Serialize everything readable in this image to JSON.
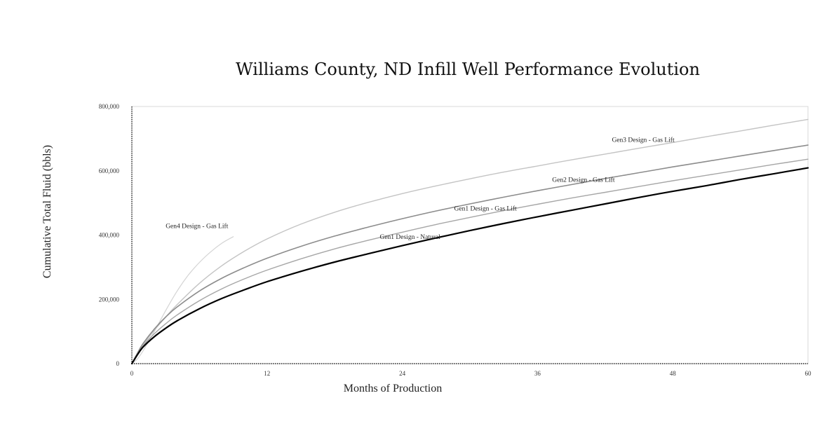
{
  "chart_data": {
    "type": "line",
    "title": "Williams County, ND Infill Well Performance Evolution",
    "xlabel": "Months of Production",
    "ylabel": "Cumulative Total Fluid (bbls)",
    "xlim": [
      0,
      60
    ],
    "ylim": [
      0,
      800000
    ],
    "x_ticks": [
      0,
      12,
      24,
      36,
      48,
      60
    ],
    "y_ticks": [
      0,
      200000,
      400000,
      600000,
      800000
    ],
    "x_tick_labels": [
      "0",
      "12",
      "24",
      "36",
      "48",
      "60"
    ],
    "y_tick_labels": [
      "0",
      "200,000",
      "400,000",
      "600,000",
      "800,000"
    ],
    "grid": false,
    "legend": "inline labels",
    "series": [
      {
        "name": "Gen1 Design - Natural",
        "color": "#000000",
        "width": 2.2,
        "x": [
          0,
          0.5,
          1,
          2,
          3,
          4,
          6,
          8,
          10,
          12,
          15,
          18,
          21,
          24,
          27,
          30,
          33,
          36,
          39,
          42,
          45,
          48,
          51,
          54,
          57,
          60
        ],
        "y": [
          0,
          28000,
          52000,
          84000,
          110000,
          133000,
          171000,
          203000,
          230000,
          255000,
          287000,
          316000,
          342000,
          367000,
          391000,
          414000,
          436000,
          457000,
          477000,
          497000,
          517000,
          536000,
          554000,
          573000,
          591000,
          609000
        ]
      },
      {
        "name": "Gen1 Design - Gas Lift",
        "color": "#a6a6a6",
        "width": 1.4,
        "x": [
          0,
          0.5,
          1,
          2,
          3,
          4,
          6,
          8,
          10,
          12,
          15,
          18,
          21,
          24,
          27,
          30,
          33,
          36,
          39,
          42,
          45,
          48,
          51,
          54,
          57,
          60
        ],
        "y": [
          0,
          30000,
          56000,
          93000,
          124000,
          151000,
          196000,
          233000,
          264000,
          291000,
          326000,
          357000,
          384000,
          409000,
          433000,
          455000,
          476000,
          496000,
          515000,
          533000,
          551000,
          569000,
          586000,
          603000,
          620000,
          636000
        ]
      },
      {
        "name": "Gen2 Design - Gas Lift",
        "color": "#8c8c8c",
        "width": 1.6,
        "x": [
          0,
          0.5,
          1,
          2,
          3,
          4,
          6,
          8,
          10,
          12,
          15,
          18,
          21,
          24,
          27,
          30,
          33,
          36,
          39,
          42,
          45,
          48,
          51,
          54,
          57,
          60
        ],
        "y": [
          0,
          33000,
          63000,
          108000,
          145000,
          176000,
          226000,
          266000,
          299000,
          328000,
          365000,
          397000,
          425000,
          451000,
          475000,
          497000,
          518000,
          538000,
          557000,
          576000,
          594000,
          612000,
          629000,
          646000,
          663000,
          680000
        ]
      },
      {
        "name": "Gen3 Design - Gas Lift",
        "color": "#c4c4c4",
        "width": 1.4,
        "x": [
          0,
          0.5,
          1,
          2,
          3,
          4,
          6,
          8,
          10,
          12,
          15,
          18,
          21,
          24,
          27,
          30,
          33,
          36,
          39,
          42,
          45,
          48,
          51,
          54,
          57,
          60
        ],
        "y": [
          0,
          30000,
          58000,
          104000,
          145000,
          183000,
          250000,
          305000,
          350000,
          388000,
          434000,
          471000,
          502000,
          529000,
          553000,
          575000,
          596000,
          615000,
          634000,
          652000,
          670000,
          688000,
          706000,
          724000,
          742000,
          760000
        ]
      },
      {
        "name": "Gen4 Design - Gas Lift",
        "color": "#d4d4d4",
        "width": 1.2,
        "x": [
          0,
          0.5,
          1,
          1.5,
          2,
          3,
          4,
          5,
          6,
          7,
          8,
          9
        ],
        "y": [
          0,
          15000,
          40000,
          70000,
          100000,
          165000,
          225000,
          275000,
          315000,
          348000,
          375000,
          395000
        ]
      }
    ],
    "annotations": [
      {
        "text": "Gen4 Design - Gas Lift",
        "x": 3.0,
        "y": 422000
      },
      {
        "text": "Gen3 Design - Gas Lift",
        "x": 42.6,
        "y": 690000
      },
      {
        "text": "Gen2 Design - Gas Lift",
        "x": 37.3,
        "y": 566000
      },
      {
        "text": "Gen1 Design - Gas Lift",
        "x": 28.6,
        "y": 476000
      },
      {
        "text": "Gen1 Design - Natural",
        "x": 22.0,
        "y": 388000
      }
    ]
  }
}
